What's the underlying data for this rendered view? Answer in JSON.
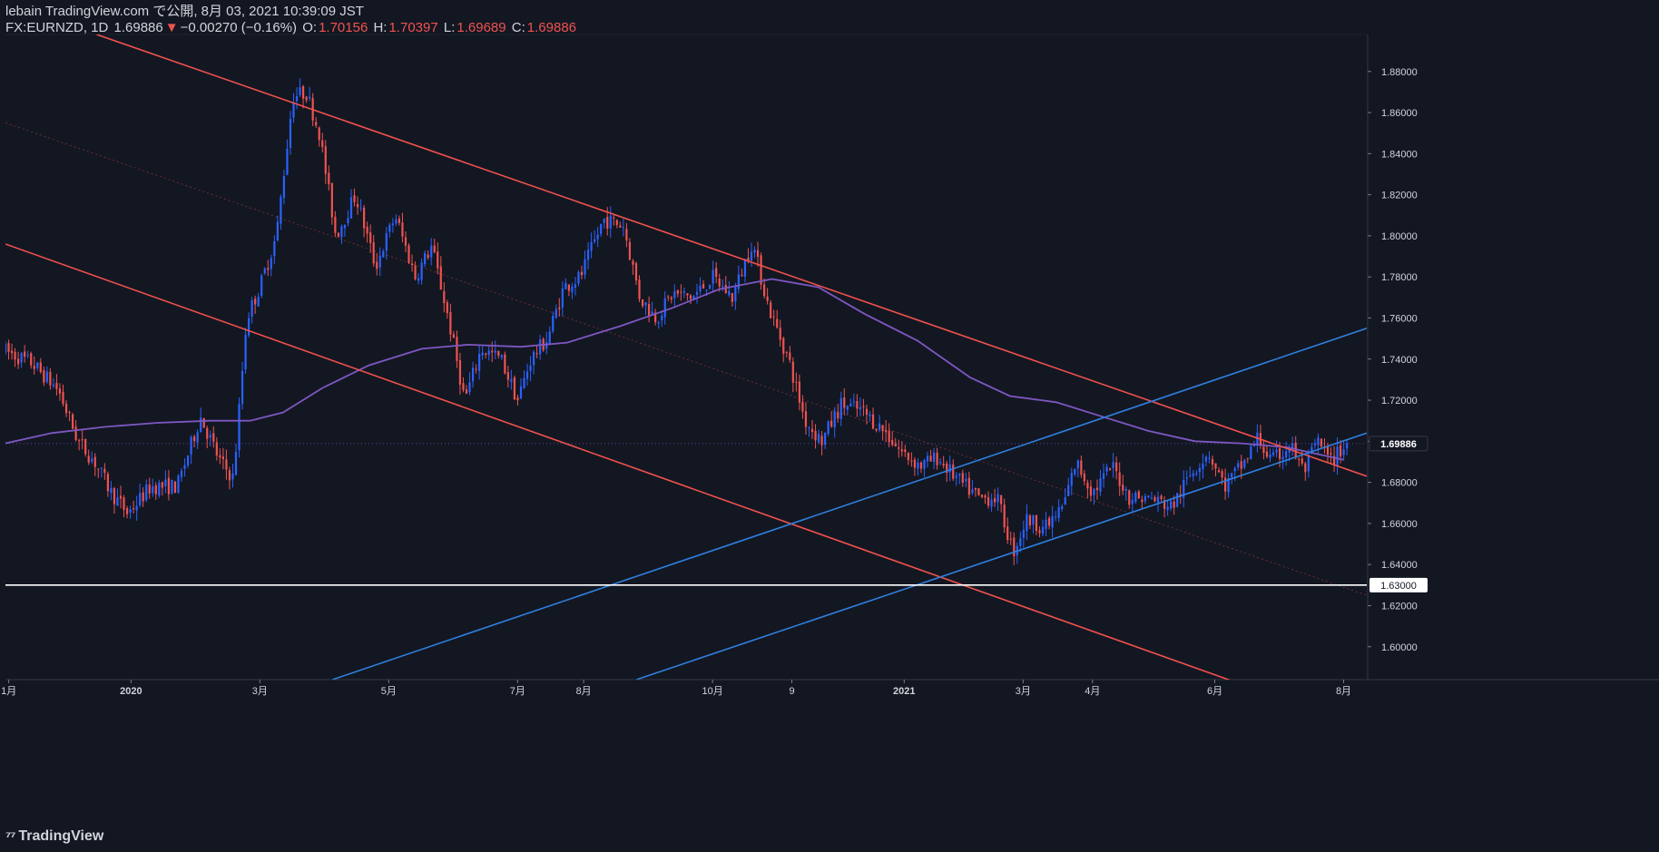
{
  "header": {
    "line1": "lebain TradingView.com で公開, 8月 03, 2021 10:39:09 JST",
    "symbol": "FX:EURNZD, 1D",
    "last": "1.69886",
    "arrow": "▼",
    "change": "−0.00270 (−0.16%)",
    "o_label": "O:",
    "o_value": "1.70156",
    "h_label": "H:",
    "h_value": "1.70397",
    "l_label": "L:",
    "l_value": "1.69689",
    "c_label": "C:",
    "c_value": "1.69886"
  },
  "footer": {
    "brand": "TradingView",
    "logo_icon": "tradingview-logo-icon"
  },
  "colors": {
    "background": "#131722",
    "grid": "#1e222d",
    "up": "#2962ff",
    "down": "#ef5350",
    "ma": "#7e57c2",
    "channel_red": "#f0514d",
    "channel_blue": "#2f7fe0",
    "support": "#ffffff",
    "axis_text": "#d1d4dc"
  },
  "chart_data": {
    "type": "candlestick",
    "symbol": "FX:EURNZD",
    "interval": "1D",
    "ylim": [
      1.584,
      1.898
    ],
    "x_range_months": [
      0,
      20.6
    ],
    "price_ticks": [
      "1.60000",
      "1.62000",
      "1.64000",
      "1.66000",
      "1.68000",
      "1.70000",
      "1.72000",
      "1.74000",
      "1.76000",
      "1.78000",
      "1.80000",
      "1.82000",
      "1.84000",
      "1.86000",
      "1.88000"
    ],
    "price_tick_values": [
      1.6,
      1.62,
      1.64,
      1.66,
      1.68,
      1.7,
      1.72,
      1.74,
      1.76,
      1.78,
      1.8,
      1.82,
      1.84,
      1.86,
      1.88
    ],
    "time_ticks": [
      {
        "label": "1月",
        "m": 0.05,
        "bold": false
      },
      {
        "label": "2020",
        "m": 1.9,
        "bold": true
      },
      {
        "label": "3月",
        "m": 3.85,
        "bold": false
      },
      {
        "label": "5月",
        "m": 5.8,
        "bold": false
      },
      {
        "label": "7月",
        "m": 7.75,
        "bold": false
      },
      {
        "label": "8月",
        "m": 8.75,
        "bold": false
      },
      {
        "label": "10月",
        "m": 10.7,
        "bold": false
      },
      {
        "label": "9",
        "m": 11.9,
        "bold": false
      },
      {
        "label": "2021",
        "m": 13.6,
        "bold": true
      },
      {
        "label": "3月",
        "m": 15.4,
        "bold": false
      },
      {
        "label": "4月",
        "m": 16.45,
        "bold": false
      },
      {
        "label": "6月",
        "m": 18.3,
        "bold": false
      },
      {
        "label": "8月",
        "m": 20.25,
        "bold": false
      }
    ],
    "price_path": [
      [
        0.0,
        1.744
      ],
      [
        0.4,
        1.738
      ],
      [
        0.8,
        1.725
      ],
      [
        1.1,
        1.7
      ],
      [
        1.35,
        1.69
      ],
      [
        1.6,
        1.675
      ],
      [
        1.85,
        1.665
      ],
      [
        2.2,
        1.678
      ],
      [
        2.6,
        1.678
      ],
      [
        2.95,
        1.712
      ],
      [
        3.25,
        1.69
      ],
      [
        3.45,
        1.682
      ],
      [
        3.65,
        1.76
      ],
      [
        3.85,
        1.775
      ],
      [
        4.1,
        1.8
      ],
      [
        4.35,
        1.868
      ],
      [
        4.55,
        1.87
      ],
      [
        4.75,
        1.85
      ],
      [
        5.0,
        1.8
      ],
      [
        5.3,
        1.82
      ],
      [
        5.6,
        1.785
      ],
      [
        5.9,
        1.81
      ],
      [
        6.2,
        1.78
      ],
      [
        6.45,
        1.795
      ],
      [
        6.7,
        1.76
      ],
      [
        6.95,
        1.72
      ],
      [
        7.2,
        1.745
      ],
      [
        7.5,
        1.74
      ],
      [
        7.75,
        1.72
      ],
      [
        7.95,
        1.74
      ],
      [
        8.2,
        1.75
      ],
      [
        8.45,
        1.775
      ],
      [
        8.7,
        1.78
      ],
      [
        9.05,
        1.808
      ],
      [
        9.35,
        1.805
      ],
      [
        9.6,
        1.77
      ],
      [
        9.85,
        1.76
      ],
      [
        10.1,
        1.772
      ],
      [
        10.4,
        1.77
      ],
      [
        10.7,
        1.78
      ],
      [
        11.0,
        1.77
      ],
      [
        11.3,
        1.797
      ],
      [
        11.55,
        1.765
      ],
      [
        11.85,
        1.74
      ],
      [
        12.1,
        1.71
      ],
      [
        12.35,
        1.7
      ],
      [
        12.65,
        1.718
      ],
      [
        12.95,
        1.715
      ],
      [
        13.3,
        1.705
      ],
      [
        13.55,
        1.695
      ],
      [
        13.85,
        1.688
      ],
      [
        14.1,
        1.692
      ],
      [
        14.45,
        1.68
      ],
      [
        14.75,
        1.672
      ],
      [
        15.0,
        1.673
      ],
      [
        15.25,
        1.646
      ],
      [
        15.45,
        1.662
      ],
      [
        15.75,
        1.658
      ],
      [
        16.0,
        1.668
      ],
      [
        16.2,
        1.69
      ],
      [
        16.45,
        1.675
      ],
      [
        16.75,
        1.688
      ],
      [
        17.0,
        1.673
      ],
      [
        17.35,
        1.672
      ],
      [
        17.65,
        1.668
      ],
      [
        17.95,
        1.685
      ],
      [
        18.2,
        1.695
      ],
      [
        18.45,
        1.678
      ],
      [
        18.75,
        1.69
      ],
      [
        18.95,
        1.702
      ],
      [
        19.15,
        1.69
      ],
      [
        19.45,
        1.698
      ],
      [
        19.65,
        1.685
      ],
      [
        19.85,
        1.7
      ],
      [
        20.05,
        1.69
      ],
      [
        20.3,
        1.699
      ]
    ],
    "ma_points": [
      [
        0.0,
        1.699
      ],
      [
        0.7,
        1.704
      ],
      [
        1.5,
        1.707
      ],
      [
        2.3,
        1.709
      ],
      [
        3.1,
        1.71
      ],
      [
        3.7,
        1.71
      ],
      [
        4.2,
        1.714
      ],
      [
        4.8,
        1.726
      ],
      [
        5.5,
        1.737
      ],
      [
        6.3,
        1.745
      ],
      [
        7.0,
        1.747
      ],
      [
        7.8,
        1.746
      ],
      [
        8.5,
        1.748
      ],
      [
        9.3,
        1.756
      ],
      [
        10.1,
        1.765
      ],
      [
        10.8,
        1.774
      ],
      [
        11.6,
        1.779
      ],
      [
        12.3,
        1.775
      ],
      [
        13.0,
        1.762
      ],
      [
        13.8,
        1.749
      ],
      [
        14.6,
        1.731
      ],
      [
        15.2,
        1.722
      ],
      [
        15.9,
        1.719
      ],
      [
        16.6,
        1.712
      ],
      [
        17.3,
        1.705
      ],
      [
        18.0,
        1.7
      ],
      [
        18.7,
        1.699
      ],
      [
        19.4,
        1.697
      ],
      [
        20.25,
        1.691
      ]
    ],
    "trendlines": [
      {
        "name": "red-channel-upper",
        "color": "channel_red",
        "width": 1.6,
        "p1": [
          1.38,
          1.898
        ],
        "p2": [
          20.6,
          1.683
        ]
      },
      {
        "name": "red-channel-lower",
        "color": "channel_red",
        "width": 1.6,
        "p1": [
          0.0,
          1.796
        ],
        "p2": [
          20.6,
          1.56
        ]
      },
      {
        "name": "red-channel-mid",
        "color": "channel_red",
        "width": 0.7,
        "dashed": true,
        "opacity": 0.55,
        "p1": [
          0.0,
          1.855
        ],
        "p2": [
          20.6,
          1.625
        ]
      },
      {
        "name": "blue-channel-upper",
        "color": "channel_blue",
        "width": 1.6,
        "p1": [
          4.95,
          1.584
        ],
        "p2": [
          20.6,
          1.755
        ]
      },
      {
        "name": "blue-channel-lower",
        "color": "channel_blue",
        "width": 1.6,
        "p1": [
          9.55,
          1.584
        ],
        "p2": [
          20.6,
          1.704
        ]
      }
    ],
    "hlines": [
      {
        "name": "support-1.63",
        "value": 1.63,
        "label": "1.63000",
        "color": "support"
      },
      {
        "name": "last-price-line",
        "value": 1.69886,
        "label": "1.69886",
        "color": "ma",
        "dotted": true
      }
    ],
    "candle_count": 420
  }
}
